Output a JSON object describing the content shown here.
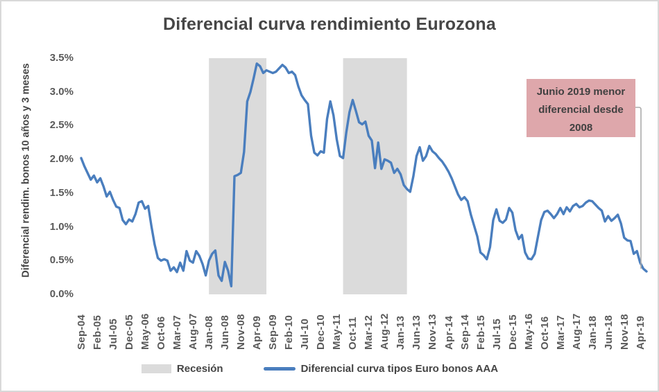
{
  "figure": {
    "title": "Diferencial curva rendimiento Eurozona",
    "y_axis_label": "Diferencial rendim. bonos 10 años y 3 meses",
    "annotation": {
      "text": "Junio 2019 menor diferencial desde 2008",
      "bg_color": "#dea7ab",
      "text_color": "#404040",
      "connector_color": "#ababab"
    },
    "legend": [
      {
        "type": "box",
        "label": "Recesión",
        "color": "#dbdbdb"
      },
      {
        "type": "line",
        "label": "Diferencial curva tipos Euro bonos AAA",
        "color": "#4a7ebe"
      }
    ]
  },
  "chart_data": {
    "type": "line",
    "title": "Diferencial curva rendimiento Eurozona",
    "xlabel": "",
    "ylabel": "Diferencial rendim. bonos 10 años y 3 meses",
    "ylim": [
      0,
      3.5
    ],
    "grid": false,
    "legend_position": "bottom",
    "ytick_labels_desc": [
      "3.5%",
      "3.0%",
      "2.5%",
      "2.0%",
      "1.5%",
      "1.0%",
      "0.5%",
      "0.0%"
    ],
    "x_monthly_start": "Sep-04",
    "x_monthly_end": "Jun-19",
    "xtick_step_months": 5,
    "xtick_labels": [
      "Sep-04",
      "Feb-05",
      "Jul-05",
      "Dec-05",
      "May-06",
      "Oct-06",
      "Mar-07",
      "Aug-07",
      "Jan-08",
      "Jun-08",
      "Nov-08",
      "Apr-09",
      "Sep-09",
      "Feb-10",
      "Jul-10",
      "Dec-10",
      "May-11",
      "Oct-11",
      "Mar-12",
      "Aug-12",
      "Jan-13",
      "Jun-13",
      "Nov-13",
      "Apr-14",
      "Sep-14",
      "Feb-15",
      "Jul-15",
      "Dec-15",
      "May-16",
      "Oct-16",
      "Mar-17",
      "Aug-17",
      "Jan-18",
      "Jun-18",
      "Nov-18",
      "Apr-19"
    ],
    "recession_bands": [
      {
        "label": "Recesión",
        "start": "Jan-08",
        "end": "Jul-09",
        "start_month_index": 40,
        "end_month_index": 58
      },
      {
        "label": "Recesión",
        "start": "Jul-11",
        "end": "Mar-13",
        "start_month_index": 82,
        "end_month_index": 102
      }
    ],
    "series": [
      {
        "name": "Diferencial curva tipos Euro bonos AAA",
        "color": "#4a7ebe",
        "unit": "%",
        "values": [
          2.02,
          1.9,
          1.8,
          1.7,
          1.76,
          1.66,
          1.72,
          1.6,
          1.45,
          1.52,
          1.4,
          1.3,
          1.28,
          1.1,
          1.04,
          1.11,
          1.08,
          1.19,
          1.36,
          1.38,
          1.27,
          1.31,
          1.01,
          0.74,
          0.54,
          0.5,
          0.52,
          0.5,
          0.35,
          0.4,
          0.33,
          0.47,
          0.35,
          0.64,
          0.5,
          0.47,
          0.64,
          0.57,
          0.45,
          0.28,
          0.5,
          0.6,
          0.65,
          0.28,
          0.2,
          0.48,
          0.35,
          0.12,
          1.75,
          1.77,
          1.8,
          2.11,
          2.86,
          3.0,
          3.2,
          3.42,
          3.38,
          3.28,
          3.32,
          3.3,
          3.28,
          3.3,
          3.35,
          3.4,
          3.36,
          3.28,
          3.3,
          3.25,
          3.08,
          2.95,
          2.88,
          2.82,
          2.35,
          2.1,
          2.06,
          2.12,
          2.1,
          2.6,
          2.86,
          2.65,
          2.3,
          2.05,
          2.02,
          2.4,
          2.7,
          2.88,
          2.72,
          2.55,
          2.52,
          2.56,
          2.35,
          2.28,
          1.87,
          2.25,
          1.86,
          2.0,
          1.98,
          1.95,
          1.8,
          1.86,
          1.78,
          1.62,
          1.56,
          1.52,
          1.75,
          2.05,
          2.18,
          1.98,
          2.05,
          2.2,
          2.12,
          2.08,
          2.02,
          1.97,
          1.9,
          1.82,
          1.72,
          1.6,
          1.48,
          1.4,
          1.44,
          1.38,
          1.18,
          1.02,
          0.86,
          0.62,
          0.58,
          0.52,
          0.7,
          1.1,
          1.26,
          1.09,
          1.06,
          1.11,
          1.28,
          1.21,
          0.95,
          0.82,
          0.88,
          0.62,
          0.53,
          0.52,
          0.6,
          0.85,
          1.1,
          1.22,
          1.24,
          1.19,
          1.13,
          1.19,
          1.28,
          1.19,
          1.29,
          1.23,
          1.31,
          1.34,
          1.29,
          1.31,
          1.36,
          1.39,
          1.38,
          1.33,
          1.28,
          1.24,
          1.08,
          1.16,
          1.09,
          1.13,
          1.18,
          1.05,
          0.84,
          0.8,
          0.79,
          0.6,
          0.64,
          0.47,
          0.38,
          0.34
        ]
      }
    ]
  }
}
